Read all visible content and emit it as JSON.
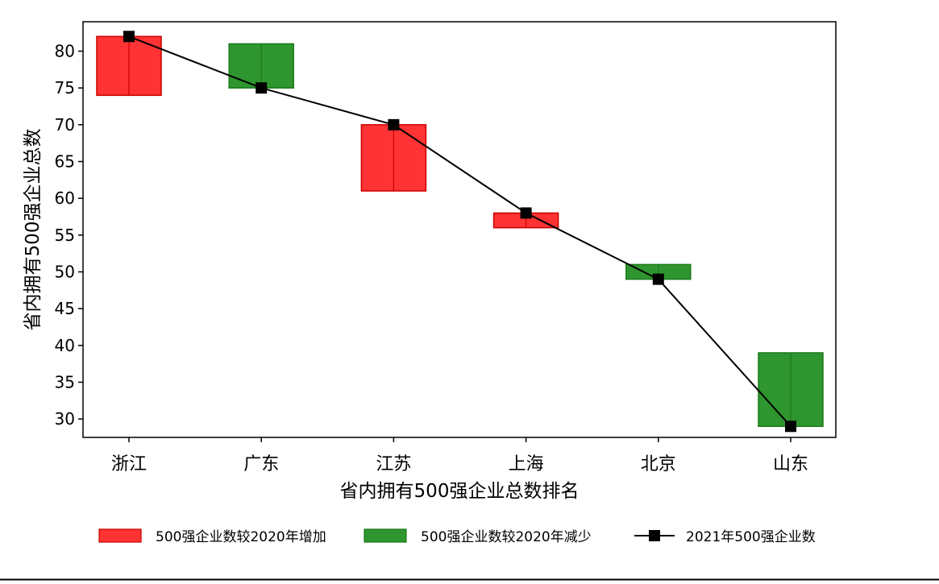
{
  "chart_data": {
    "type": "bar",
    "categories": [
      "浙江",
      "广东",
      "江苏",
      "上海",
      "北京",
      "山东"
    ],
    "series": [
      {
        "name": "500强企业数较2020年增加",
        "color": "#ff3333",
        "edge_color": "#cc0000",
        "ranges": [
          [
            74,
            82
          ],
          null,
          [
            61,
            70
          ],
          [
            56,
            58
          ],
          null,
          null
        ]
      },
      {
        "name": "500强企业数较2020年减少",
        "color": "#2f962f",
        "edge_color": "#1a7a1a",
        "ranges": [
          null,
          [
            75,
            81
          ],
          null,
          null,
          [
            49,
            51
          ],
          [
            29,
            39
          ]
        ]
      },
      {
        "name": "2021年500强企业数",
        "type": "line",
        "color": "#000000",
        "marker": "square",
        "values": [
          82,
          75,
          70,
          58,
          49,
          29
        ]
      }
    ],
    "xlabel": "省内拥有500强企业总数排名",
    "ylabel": "省内拥有500强企业总数",
    "ylim": [
      27.5,
      84
    ],
    "yticks": [
      30,
      35,
      40,
      45,
      50,
      55,
      60,
      65,
      70,
      75,
      80
    ],
    "grid": false,
    "legend": "bottom"
  }
}
